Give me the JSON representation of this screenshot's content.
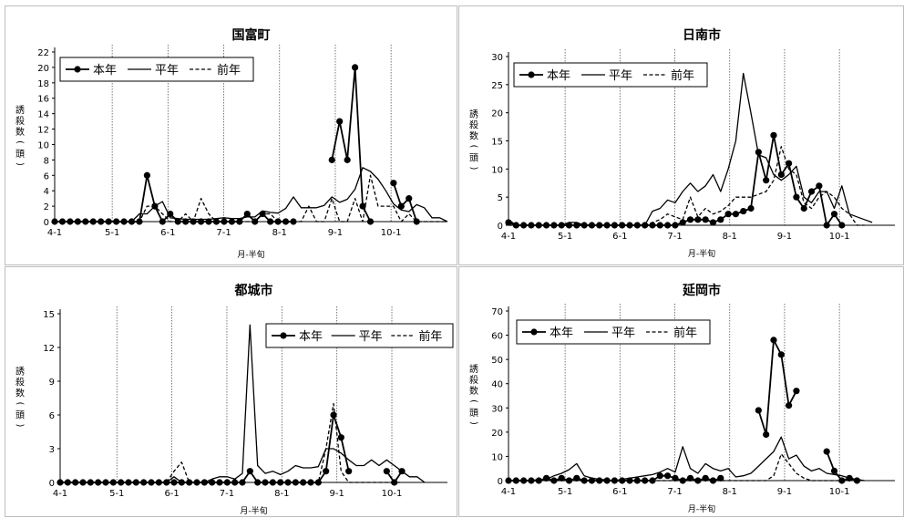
{
  "chart_data": [
    {
      "type": "line",
      "title": "国富町",
      "xlabel": "月-半旬",
      "ylabel": "誘殺数(頭)",
      "x_ticks": [
        "4-1",
        "5-1",
        "6-1",
        "7-1",
        "8-1",
        "9-1",
        "10-1"
      ],
      "ylim": [
        0,
        22
      ],
      "y_ticks": [
        0,
        2,
        4,
        6,
        8,
        10,
        12,
        14,
        16,
        18,
        20,
        22
      ],
      "legend_position": "top-left",
      "series": [
        {
          "name": "本年",
          "style": "solid-marker",
          "values": [
            0,
            0,
            0,
            0,
            0,
            0,
            0,
            0,
            0,
            0,
            0,
            0,
            6,
            2,
            0,
            1,
            0,
            0,
            0,
            0,
            0,
            0,
            0,
            0,
            0,
            1,
            0,
            1,
            0,
            0,
            0,
            0,
            null,
            null,
            null,
            null,
            8,
            13,
            8,
            20,
            2,
            0,
            null,
            null,
            5,
            2,
            3,
            0,
            null,
            null,
            null,
            null
          ]
        },
        {
          "name": "平年",
          "style": "solid",
          "values": [
            0,
            0,
            0,
            0,
            0,
            0,
            0,
            0,
            0,
            0,
            0,
            1,
            1,
            2,
            2.6,
            0.5,
            0.4,
            0.3,
            0.3,
            0.3,
            0.3,
            0.4,
            0.5,
            0.4,
            0.4,
            0.6,
            0.6,
            1.4,
            1.2,
            1.1,
            1.7,
            3.2,
            1.8,
            1.8,
            1.8,
            2.1,
            3.2,
            2.5,
            2.9,
            4.2,
            7,
            6.5,
            5.5,
            4,
            2.3,
            1.5,
            1.3,
            2.2,
            1.8,
            0.5,
            0.5,
            0
          ]
        },
        {
          "name": "前年",
          "style": "dashed",
          "values": [
            0,
            0,
            0,
            0,
            0,
            0,
            0,
            0,
            0,
            0,
            0,
            0,
            2,
            2,
            1,
            0,
            0,
            1,
            0,
            3,
            1,
            0,
            0,
            0,
            0,
            0,
            0,
            1,
            1,
            0,
            0,
            0,
            0,
            2,
            0,
            0,
            3,
            0,
            0,
            3,
            0,
            6,
            2,
            2,
            2,
            0,
            1,
            0,
            0,
            0,
            0,
            0
          ]
        }
      ]
    },
    {
      "type": "line",
      "title": "日南市",
      "xlabel": "月-半旬",
      "ylabel": "誘殺数(頭)",
      "x_ticks": [
        "4-1",
        "5-1",
        "6-1",
        "7-1",
        "8-1",
        "9-1",
        "10-1"
      ],
      "ylim": [
        0,
        30
      ],
      "y_ticks": [
        0,
        5,
        10,
        15,
        20,
        25,
        30
      ],
      "legend_position": "top-left",
      "series": [
        {
          "name": "本年",
          "style": "solid-marker",
          "values": [
            0.5,
            0,
            0,
            0,
            0,
            0,
            0,
            0,
            0,
            0,
            0,
            0,
            0,
            0,
            0,
            0,
            0,
            0,
            0,
            0,
            0,
            0,
            0,
            0.5,
            1,
            1,
            1,
            0.5,
            1,
            2,
            2,
            2.5,
            3,
            13,
            8,
            16,
            9,
            11,
            5,
            3,
            6,
            7,
            0,
            2,
            0,
            null,
            null,
            null,
            null,
            null,
            null,
            null
          ]
        },
        {
          "name": "平年",
          "style": "solid",
          "values": [
            1,
            0,
            0,
            0,
            0,
            0,
            0,
            0,
            0.5,
            0.5,
            0,
            0,
            0,
            0,
            0,
            0,
            0,
            0,
            0,
            2.5,
            3,
            4.5,
            4,
            6,
            7.5,
            6,
            7,
            9,
            6,
            10,
            15,
            27,
            20,
            12.5,
            12,
            9,
            8,
            9,
            10.5,
            5,
            4,
            6,
            6,
            3,
            7,
            2,
            1.5,
            1,
            0.5,
            null,
            null,
            null
          ]
        },
        {
          "name": "前年",
          "style": "dashed",
          "values": [
            0,
            0,
            0,
            0,
            0,
            0,
            0,
            0,
            0,
            0,
            0,
            0,
            0,
            0,
            0,
            0,
            0,
            0,
            0,
            0.5,
            1,
            2,
            1.5,
            1,
            5,
            1.5,
            3,
            2,
            2.5,
            3.5,
            5,
            5,
            5,
            5.5,
            6,
            8,
            14,
            10,
            9,
            4,
            3,
            5,
            6,
            5,
            3,
            2,
            0,
            0,
            null,
            null,
            null,
            null
          ]
        }
      ]
    },
    {
      "type": "line",
      "title": "都城市",
      "xlabel": "月-半旬",
      "ylabel": "誘殺数(頭)",
      "x_ticks": [
        "4-1",
        "5-1",
        "6-1",
        "7-1",
        "8-1",
        "9-1",
        "10-1"
      ],
      "ylim": [
        0,
        15
      ],
      "y_ticks": [
        0,
        3,
        6,
        9,
        12,
        15
      ],
      "legend_position": "top-right",
      "series": [
        {
          "name": "本年",
          "style": "solid-marker",
          "values": [
            0,
            0,
            0,
            0,
            0,
            0,
            0,
            0,
            0,
            0,
            0,
            0,
            0,
            0,
            0,
            0,
            0,
            0,
            0,
            0,
            0,
            0,
            0,
            0,
            0,
            1,
            0,
            0,
            0,
            0,
            0,
            0,
            0,
            0,
            0,
            1,
            6,
            4,
            1,
            null,
            null,
            null,
            null,
            1,
            0,
            1,
            null,
            null,
            null,
            null,
            null,
            null
          ]
        },
        {
          "name": "平年",
          "style": "solid",
          "values": [
            0,
            0,
            0,
            0,
            0,
            0,
            0,
            0,
            0,
            0,
            0,
            0,
            0,
            0,
            0,
            0.5,
            0,
            0,
            0,
            0,
            0.3,
            0.5,
            0.5,
            0.3,
            0.8,
            14,
            1.5,
            0.8,
            1,
            0.7,
            1,
            1.5,
            1.3,
            1.3,
            1.4,
            3,
            3,
            2.6,
            2,
            1.5,
            1.5,
            2,
            1.5,
            2,
            1.5,
            1,
            0.5,
            0.5,
            0,
            null,
            null,
            null
          ]
        },
        {
          "name": "前年",
          "style": "dashed",
          "values": [
            0,
            0,
            0,
            0,
            0,
            0,
            0,
            0,
            0,
            0,
            0,
            0,
            0,
            0,
            0,
            1,
            1.8,
            0,
            0,
            0,
            0,
            0,
            0,
            0,
            0,
            1,
            0,
            0,
            0,
            0,
            0,
            0,
            0,
            0,
            0,
            3,
            7,
            1,
            0,
            0,
            0,
            0,
            0,
            0,
            0,
            0,
            null,
            null,
            null,
            null,
            null,
            null
          ]
        }
      ]
    },
    {
      "type": "line",
      "title": "延岡市",
      "xlabel": "月-半旬",
      "ylabel": "誘殺数(頭)",
      "x_ticks": [
        "4-1",
        "5-1",
        "6-1",
        "7-1",
        "8-1",
        "9-1",
        "10-1"
      ],
      "ylim": [
        0,
        70
      ],
      "y_ticks": [
        0,
        10,
        20,
        30,
        40,
        50,
        60,
        70
      ],
      "legend_position": "top-left",
      "series": [
        {
          "name": "本年",
          "style": "solid-marker",
          "values": [
            0,
            0,
            0,
            0,
            0,
            1,
            0,
            1,
            0,
            1,
            0,
            0,
            0,
            0,
            0,
            0,
            0,
            0,
            0,
            0,
            2,
            2,
            1,
            0,
            1,
            0,
            1,
            0,
            1,
            null,
            null,
            null,
            null,
            29,
            19,
            58,
            52,
            31,
            37,
            null,
            null,
            null,
            12,
            4,
            0,
            1,
            0,
            null,
            null,
            null,
            null,
            null
          ]
        },
        {
          "name": "平年",
          "style": "solid",
          "values": [
            0,
            0,
            0,
            0,
            0.5,
            0.5,
            2,
            3,
            4.5,
            7,
            2,
            1,
            0.5,
            0.3,
            0,
            0.5,
            1,
            1.5,
            2,
            2.5,
            3.5,
            5,
            3.5,
            14,
            5,
            3,
            7,
            5,
            4,
            5,
            1.5,
            2,
            3,
            6,
            9,
            12,
            18,
            9,
            10.5,
            6,
            4,
            5,
            3,
            2.5,
            2,
            1,
            0.5,
            0,
            null,
            null,
            null,
            null
          ]
        },
        {
          "name": "前年",
          "style": "dashed",
          "values": [
            0,
            0,
            0,
            0,
            0,
            0,
            0,
            0,
            0,
            0,
            0,
            0,
            0,
            0,
            0,
            0,
            0,
            0,
            0,
            0,
            0,
            0,
            0,
            0,
            0,
            0,
            0,
            0,
            0,
            0,
            0,
            0,
            0,
            0,
            0,
            2,
            11,
            7,
            3,
            1,
            0,
            0,
            0,
            0,
            0,
            0,
            null,
            null,
            null,
            null,
            null,
            null
          ]
        }
      ]
    }
  ]
}
